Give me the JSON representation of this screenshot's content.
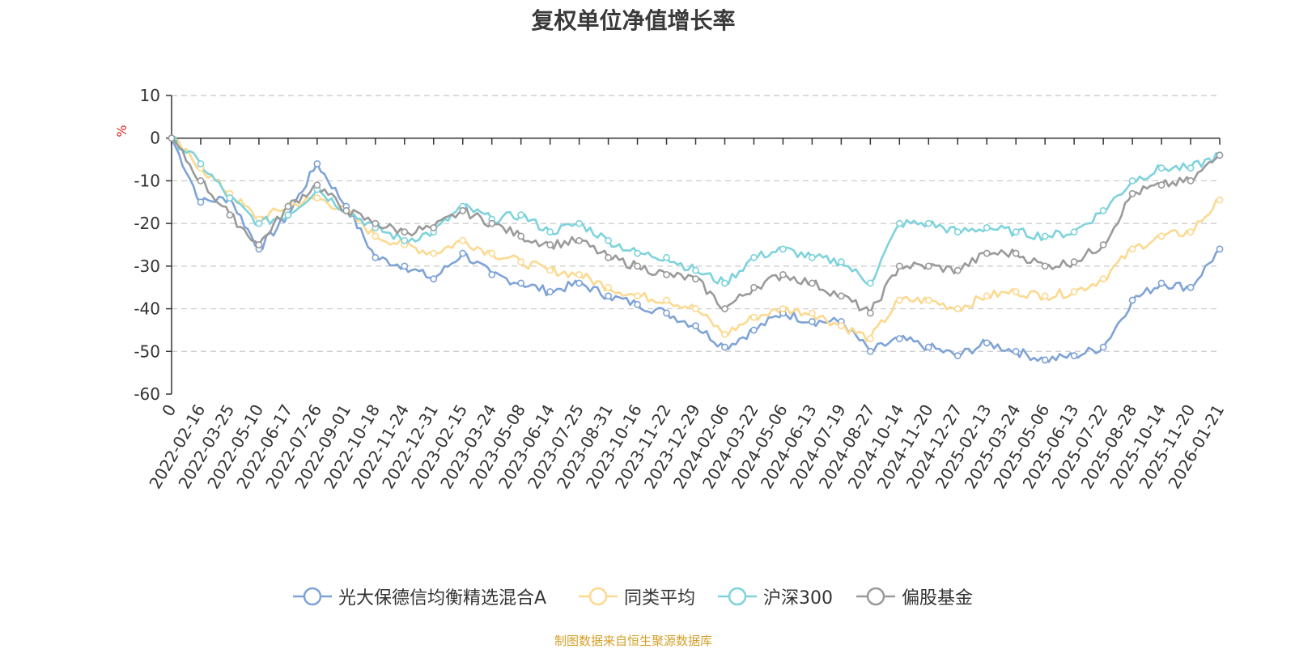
{
  "chart_data": {
    "type": "line",
    "title": "复权单位净值增长率",
    "ylabel": "%",
    "xlabel": "",
    "ylim": [
      -60,
      10
    ],
    "yticks": [
      10,
      0,
      -10,
      -20,
      -30,
      -40,
      -50,
      -60
    ],
    "x_tick_labels": [
      "0",
      "2022-02-16",
      "2022-03-25",
      "2022-05-10",
      "2022-06-17",
      "2022-07-26",
      "2022-09-01",
      "2022-10-18",
      "2022-11-24",
      "2022-12-31",
      "2023-02-15",
      "2023-03-24",
      "2023-05-08",
      "2023-06-14",
      "2023-07-25",
      "2023-08-31",
      "2023-10-16",
      "2023-11-22",
      "2023-12-29",
      "2024-02-06",
      "2024-03-22",
      "2024-05-06",
      "2024-06-13",
      "2024-07-19",
      "2024-08-27",
      "2024-10-14",
      "2024-11-20",
      "2024-12-27",
      "2025-02-13",
      "2025-03-24",
      "2025-05-06",
      "2025-06-13",
      "2025-07-22",
      "2025-08-28",
      "2025-10-14",
      "2025-11-20",
      "2026-01-21"
    ],
    "x": [
      "0",
      "2022-02-16",
      "2022-03-25",
      "2022-05-10",
      "2022-06-17",
      "2022-07-26",
      "2022-09-01",
      "2022-10-18",
      "2022-11-24",
      "2022-12-31",
      "2023-02-15",
      "2023-03-24",
      "2023-05-08",
      "2023-06-14",
      "2023-07-25",
      "2023-08-31",
      "2023-10-16",
      "2023-11-22",
      "2023-12-29",
      "2024-02-06",
      "2024-03-22",
      "2024-05-06",
      "2024-06-13",
      "2024-07-19",
      "2024-08-27",
      "2024-10-14",
      "2024-11-20",
      "2024-12-27",
      "2025-02-13",
      "2025-03-24",
      "2025-05-06",
      "2025-06-13",
      "2025-07-22",
      "2025-08-28",
      "2025-10-14",
      "2025-11-20",
      "2026-01-21"
    ],
    "series": [
      {
        "name": "光大保德信均衡精选混合A",
        "color": "#7fa3d6",
        "values": [
          0,
          -15,
          -14,
          -26,
          -18,
          -6,
          -16,
          -28,
          -30,
          -33,
          -27,
          -32,
          -34,
          -36,
          -34,
          -37,
          -39,
          -41,
          -44,
          -49,
          -45,
          -41,
          -43,
          -43,
          -50,
          -47,
          -49,
          -51,
          -48,
          -50,
          -52,
          -51,
          -49,
          -38,
          -34,
          -35,
          -26
        ]
      },
      {
        "name": "同类平均",
        "color": "#fcd98f",
        "values": [
          0,
          -7,
          -13,
          -19,
          -16,
          -14,
          -17,
          -23,
          -25,
          -27,
          -24,
          -27,
          -29,
          -31,
          -32,
          -35,
          -37,
          -38,
          -40,
          -46,
          -42,
          -40,
          -41,
          -44,
          -47,
          -38,
          -38,
          -40,
          -37,
          -36,
          -37,
          -36,
          -33,
          -26,
          -23,
          -22,
          -14.5
        ]
      },
      {
        "name": "沪深300",
        "color": "#7dd3dc",
        "values": [
          0,
          -6,
          -14,
          -20,
          -18,
          -12,
          -17,
          -21,
          -24,
          -22,
          -16,
          -19,
          -18,
          -22,
          -20,
          -24,
          -27,
          -28,
          -31,
          -34,
          -28,
          -26,
          -28,
          -29,
          -34,
          -20,
          -20,
          -22,
          -21,
          -22,
          -23,
          -22,
          -17,
          -10,
          -7,
          -7,
          -4
        ]
      },
      {
        "name": "偏股基金",
        "color": "#9a9a9a",
        "values": [
          0,
          -10,
          -18,
          -25,
          -16,
          -11,
          -17,
          -20,
          -22,
          -21,
          -17,
          -20,
          -23,
          -25,
          -24,
          -28,
          -30,
          -32,
          -33,
          -40,
          -35,
          -32,
          -34,
          -37,
          -41,
          -30,
          -30,
          -31,
          -27,
          -27,
          -30,
          -29,
          -25,
          -13,
          -11,
          -10,
          -4
        ]
      }
    ]
  },
  "source_text": "制图数据来自恒生聚源数据库"
}
